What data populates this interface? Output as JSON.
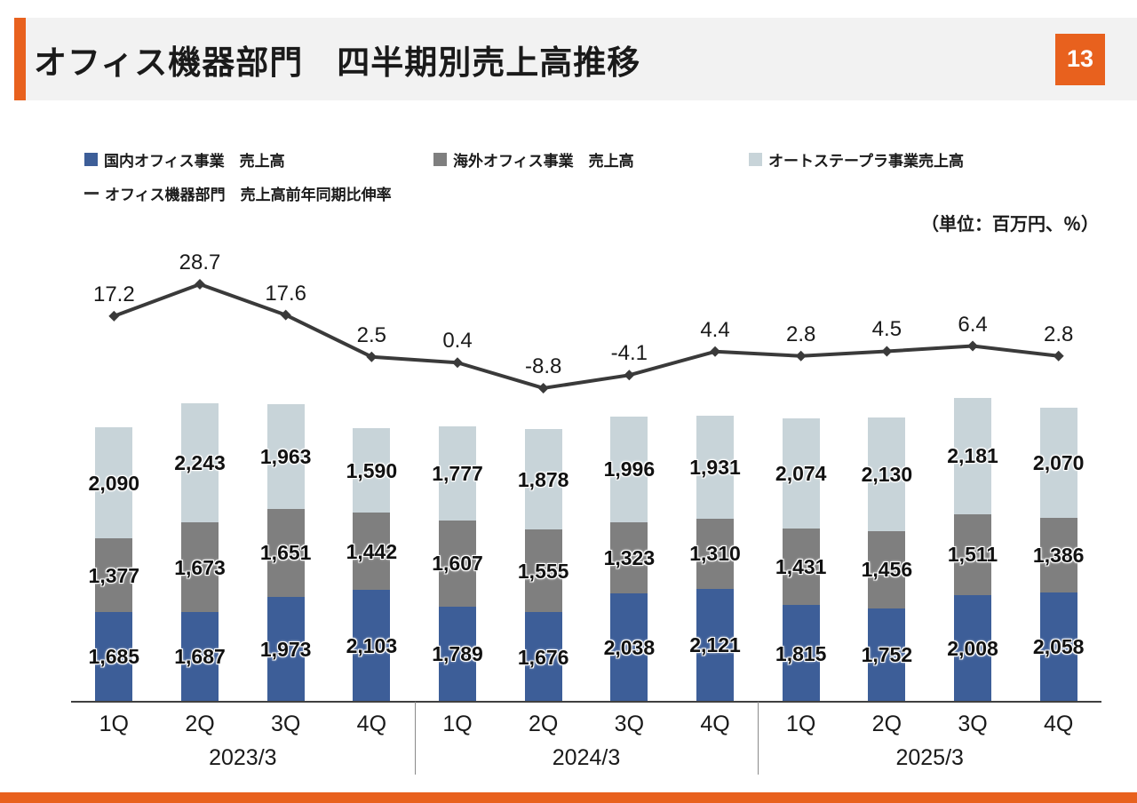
{
  "colors": {
    "accent_orange": "#e8611e",
    "header_band": "#f2f2f2",
    "text_dark": "#1a1a1a",
    "domestic_blue": "#3d5e98",
    "overseas_gray": "#7f7f7f",
    "stapler_light": "#c8d4d9",
    "growth_line": "#3a3a3a"
  },
  "header": {
    "title": "オフィス機器部門　四半期別売上高推移",
    "page_number": "13"
  },
  "unit_note": "（単位：百万円、％）",
  "legend": {
    "items": [
      {
        "label": "国内オフィス事業　売上高",
        "color": "#3d5e98"
      },
      {
        "label": "海外オフィス事業　売上高",
        "color": "#7f7f7f"
      },
      {
        "label": "オートステープラ事業売上高",
        "color": "#c8d4d9"
      }
    ],
    "line_item": {
      "label": "オフィス機器部門　売上高前年同期比伸率",
      "color": "#3a3a3a"
    }
  },
  "chart_data": {
    "type": "bar",
    "variant": "stacked-bars-with-line-overlay",
    "title": "オフィス機器部門　四半期別売上高推移",
    "unit": "百万円、％",
    "legend_position": "top",
    "gridlines": false,
    "value_labels": true,
    "categories": [
      "1Q",
      "2Q",
      "3Q",
      "4Q",
      "1Q",
      "2Q",
      "3Q",
      "4Q",
      "1Q",
      "2Q",
      "3Q",
      "4Q"
    ],
    "year_groups": [
      {
        "label": "2023/3",
        "span": [
          0,
          3
        ]
      },
      {
        "label": "2024/3",
        "span": [
          4,
          7
        ]
      },
      {
        "label": "2025/3",
        "span": [
          8,
          11
        ]
      }
    ],
    "series": [
      {
        "name": "国内オフィス事業　売上高",
        "type": "bar",
        "stack": true,
        "color": "#3d5e98",
        "values": [
          1685,
          1687,
          1973,
          2103,
          1789,
          1676,
          2038,
          2121,
          1815,
          1752,
          2008,
          2058
        ]
      },
      {
        "name": "海外オフィス事業　売上高",
        "type": "bar",
        "stack": true,
        "color": "#7f7f7f",
        "values": [
          1377,
          1673,
          1651,
          1442,
          1607,
          1555,
          1323,
          1310,
          1431,
          1456,
          1511,
          1386
        ]
      },
      {
        "name": "オートステープラ事業売上高",
        "type": "bar",
        "stack": true,
        "color": "#c8d4d9",
        "values": [
          2090,
          2243,
          1963,
          1590,
          1777,
          1878,
          1996,
          1931,
          2074,
          2130,
          2181,
          2070
        ]
      },
      {
        "name": "オフィス機器部門　売上高前年同期比伸率",
        "type": "line",
        "color": "#3a3a3a",
        "values": [
          17.2,
          28.7,
          17.6,
          2.5,
          0.4,
          -8.8,
          -4.1,
          4.4,
          2.8,
          4.5,
          6.4,
          2.8
        ]
      }
    ]
  }
}
